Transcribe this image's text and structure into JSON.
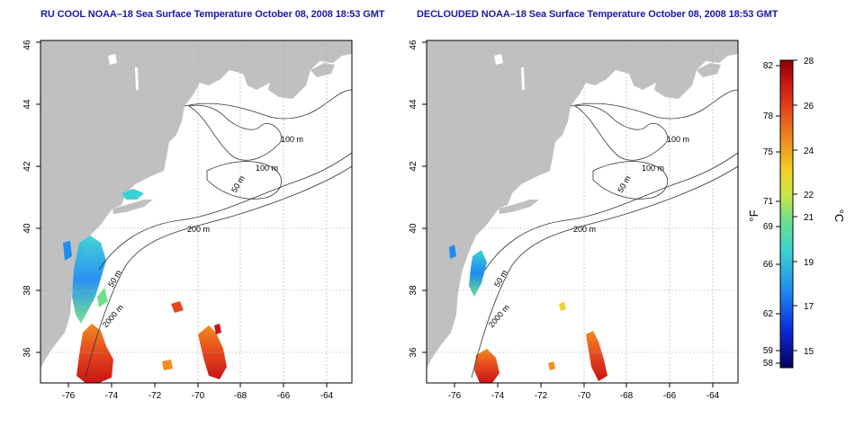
{
  "maps": [
    {
      "title": "RU COOL NOAA–18 Sea Surface Temperature October 08, 2008 18:53 GMT",
      "x_ticks": [
        "-76",
        "-74",
        "-72",
        "-70",
        "-68",
        "-66",
        "-64"
      ],
      "y_ticks": [
        "36",
        "38",
        "40",
        "42",
        "44",
        "46"
      ],
      "contour_labels": [
        "100 m",
        "100 m",
        "50 m",
        "200 m",
        "50 m",
        "2000 m"
      ]
    },
    {
      "title": "DECLOUDED NOAA–18 Sea Surface Temperature October 08, 2008 18:53 GMT",
      "x_ticks": [
        "-76",
        "-74",
        "-72",
        "-70",
        "-68",
        "-66",
        "-64"
      ],
      "y_ticks": [
        "36",
        "38",
        "40",
        "42",
        "44",
        "46"
      ],
      "contour_labels": [
        "100 m",
        "100 m",
        "50 m",
        "200 m",
        "50 m",
        "2000 m"
      ]
    }
  ],
  "colorbar": {
    "f_label": "°F",
    "c_label": "°C",
    "f_ticks": [
      "82",
      "78",
      "75",
      "71",
      "69",
      "66",
      "62",
      "59",
      "58"
    ],
    "c_ticks": [
      "28",
      "26",
      "24",
      "22",
      "21",
      "19",
      "17",
      "15"
    ],
    "colors": [
      "#08005a",
      "#0a2ad8",
      "#1e8cf0",
      "#3cd2d2",
      "#6ee08c",
      "#c8e646",
      "#f0d228",
      "#f08c1e",
      "#e6461e",
      "#c81414",
      "#8c0000"
    ]
  },
  "land_color": "#c0c0c0"
}
